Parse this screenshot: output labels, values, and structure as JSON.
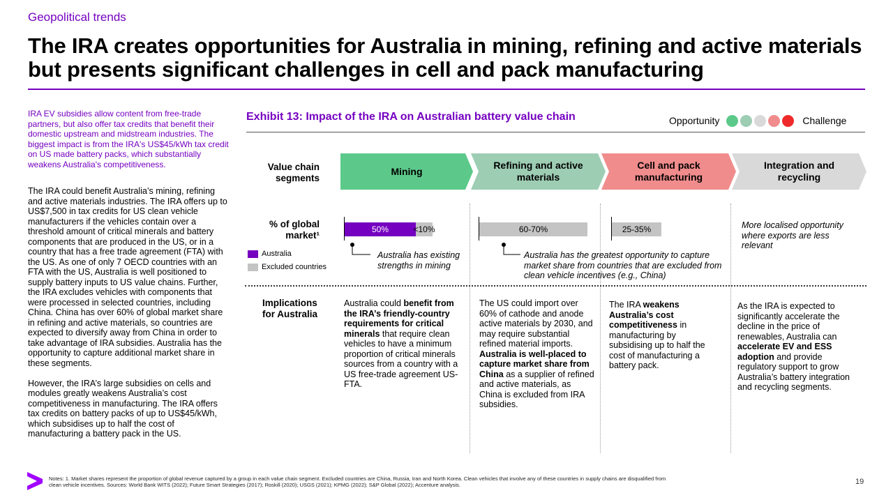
{
  "header": {
    "kicker": "Geopolitical trends",
    "title": "The IRA creates opportunities for Australia in mining, refining and active materials but presents significant challenges in cell and pack manufacturing"
  },
  "left": {
    "intro": "IRA EV subsidies allow content from free-trade partners, but also offer tax credits that benefit their domestic upstream and midstream industries. The biggest impact is from the IRA's US$45/kWh tax credit on US made battery packs, which substantially weakens Australia's competitiveness.",
    "para1": "The IRA could benefit Australia’s mining, refining and active materials industries. The IRA offers up to US$7,500 in tax credits for US clean vehicle manufacturers if the vehicles contain over a threshold amount of critical minerals and battery components that are produced in the US, or in a country that has a free trade agreement (FTA) with the US. As one of only 7 OECD countries with an FTA with the US, Australia is well positioned to supply battery inputs to US value chains. Further, the IRA excludes vehicles with components that were processed in selected countries, including China. China has over 60% of global market share in refining and active materials, so countries are expected to diversify away from China in order to take advantage of IRA subsidies. Australia has the opportunity to capture additional market share in these segments.",
    "para2": "However, the IRA’s large subsidies on cells and modules greatly weakens Australia’s cost competitiveness in manufacturing. The IRA offers tax credits on battery packs of up to US$45/kWh, which subsidises up to half the cost of manufacturing a battery pack in the US."
  },
  "exhibit": {
    "title": "Exhibit 13: Impact of the IRA on Australian battery value chain",
    "scale_left": "Opportunity",
    "scale_right": "Challenge",
    "scale_colors": [
      "#5cc98a",
      "#9dcdb3",
      "#d9d9d9",
      "#f08c8c",
      "#ee2a2a"
    ],
    "row_labels": {
      "segments": "Value chain segments",
      "share": "% of global market¹",
      "implications": "Implications for Australia"
    },
    "legend": {
      "australia": "Australia",
      "excluded": "Excluded countries"
    },
    "colors": {
      "australia": "#7500c0",
      "excluded": "#c4c4c4"
    },
    "segments": [
      {
        "label": "Mining",
        "color": "#5cc98a"
      },
      {
        "label": "Refining and active materials",
        "color": "#9dcdb3"
      },
      {
        "label": "Cell and pack manufacturing",
        "color": "#f08c8c"
      },
      {
        "label": "Integration and recycling",
        "color": "#d9d9d9"
      }
    ],
    "bars": {
      "mining_australia": "50%",
      "mining_excluded": "<10%",
      "refining_excluded": "60-70%",
      "cell_excluded": "25-35%"
    },
    "bar_values": {
      "mining_australia": 0.5,
      "mining_excluded": 0.09,
      "refining_excluded": 0.65,
      "cell_excluded": 0.3
    },
    "annotations": {
      "mining": "Australia has existing strengths in mining",
      "refining": "Australia has the greatest opportunity to capture market share from countries that are excluded from clean vehicle incentives (e.g., China)",
      "integration": "More localised opportunity where exports are less relevant"
    },
    "implications": {
      "mining": [
        "Australia could ",
        "benefit from the IRA’s friendly-country requirements for critical minerals",
        " that require clean vehicles to have a minimum proportion of critical minerals sources from a country with a US free-trade agreement US-FTA."
      ],
      "refining": [
        "The US could import over 60% of cathode and anode active materials by 2030, and may require substantial refined material imports. ",
        "Australia is well-placed to capture market share from China",
        " as a supplier of refined and active materials, as China is excluded from IRA subsidies."
      ],
      "cell": [
        "The IRA ",
        "weakens Australia’s cost competitiveness",
        " in manufacturing by subsidising up to half the cost of manufacturing a battery pack."
      ],
      "integration": [
        "As the IRA is expected to significantly accelerate the decline in the price of renewables, Australia can ",
        "accelerate EV and ESS adoption",
        " and provide regulatory support to grow Australia’s battery integration and recycling segments."
      ]
    }
  },
  "footer": {
    "notes": "Notes: 1. Market shares represent the proportion of global revenue captured by a group in each value chain segment. Excluded countries are China, Russia, Iran and North Korea. Clean vehicles that involve any of these countries in supply chains are disqualified from clean vehicle incentives. Sources: World Bank WITS (2022); Future Smart Strategies (2017); Roskill (2020); USGS (2021); KPMG (2022); S&P Global (2022); Accenture analysis.",
    "page": "19"
  }
}
